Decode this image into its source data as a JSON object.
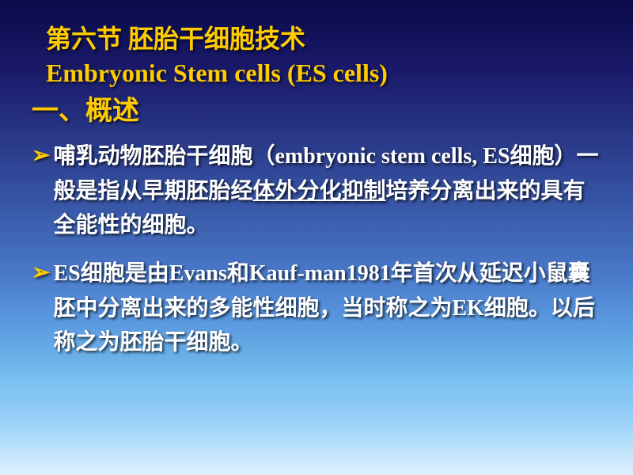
{
  "colors": {
    "title_color": "#ffcc00",
    "body_color": "#ffffff",
    "shadow_color": "rgba(0,0,0,0.7)",
    "bg_gradient_top": "#0a0a4a",
    "bg_gradient_bottom": "#e0f0ff"
  },
  "typography": {
    "title_fontsize": 32,
    "section_fontsize": 34,
    "body_fontsize": 28,
    "font_weight": "bold",
    "font_family_cjk": "SimSun",
    "font_family_latin": "Times New Roman"
  },
  "title": {
    "line1": "第六节 胚胎干细胞技术",
    "line2": "Embryonic Stem cells (ES cells)"
  },
  "section_heading": "一、概述",
  "bullets": [
    {
      "marker": "➢",
      "pre": "哺乳动物胚胎干细胞（embryonic stem cells, ES细胞）一般是指从早期胚胎经",
      "underlined": "体外分化抑制",
      "post": "培养分离出来的具有全能性的细胞。"
    },
    {
      "marker": "➢",
      "pre": "ES细胞是由Evans和Kauf-man1981年首次从延迟小鼠囊胚中分离出来的多能性细胞，当时称之为EK细胞。以后称之为胚胎干细胞。",
      "underlined": "",
      "post": ""
    }
  ]
}
